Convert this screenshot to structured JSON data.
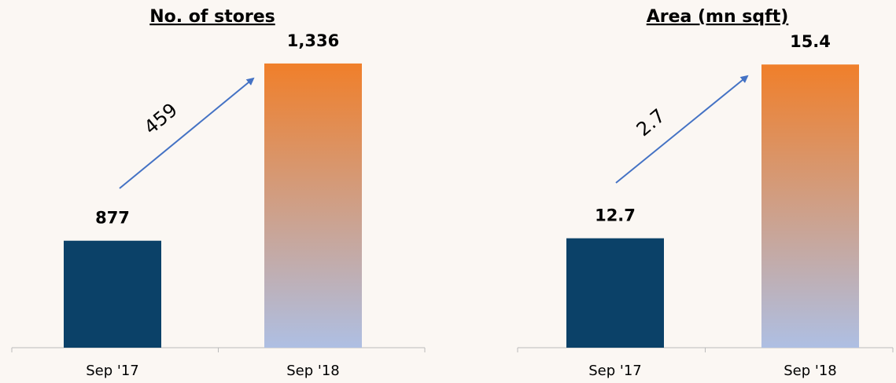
{
  "chart_data": [
    {
      "type": "bar",
      "title": "No. of stores",
      "categories": [
        "Sep '17",
        "Sep '18"
      ],
      "values": [
        877,
        1336
      ],
      "value_labels": [
        "877",
        "1,336"
      ],
      "colors": [
        "#0b4168",
        "gradient"
      ],
      "ylim": [
        600,
        1350
      ],
      "annotation": "459"
    },
    {
      "type": "bar",
      "title": "Area (mn sqft)",
      "categories": [
        "Sep '17",
        "Sep '18"
      ],
      "values": [
        12.7,
        15.4
      ],
      "value_labels": [
        "12.7",
        "15.4"
      ],
      "colors": [
        "#0b4168",
        "gradient"
      ],
      "ylim": [
        11,
        15.5
      ],
      "annotation": "2.7"
    }
  ]
}
